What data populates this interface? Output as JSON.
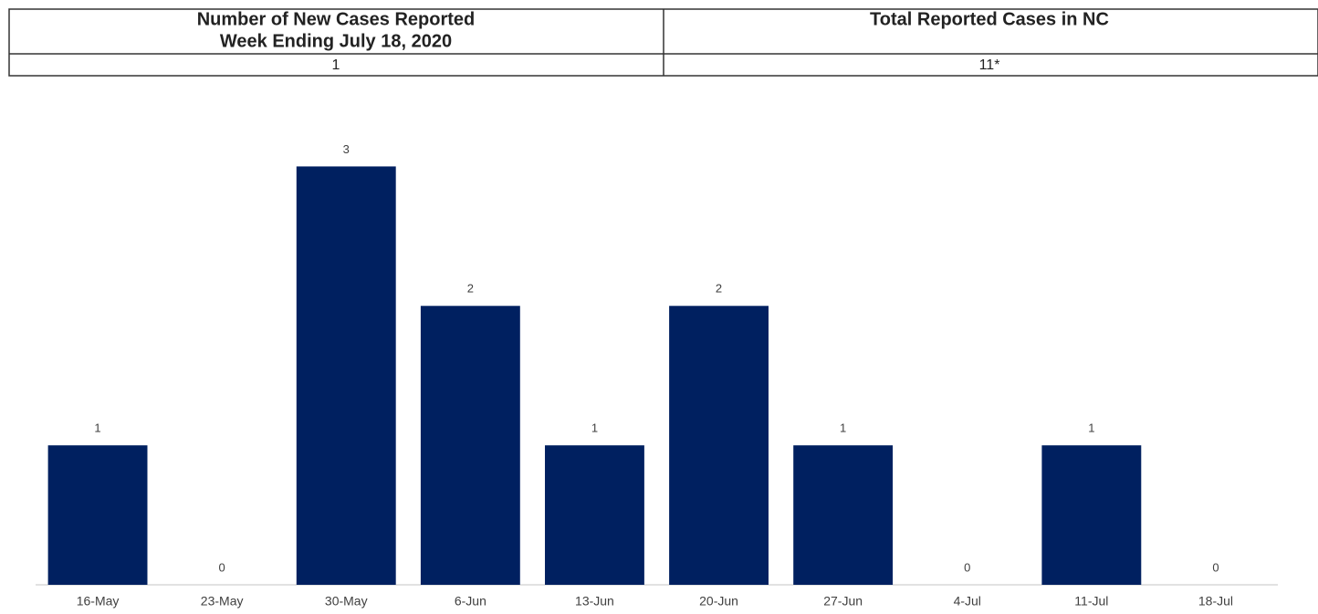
{
  "table": {
    "headers": [
      [
        "Number of New Cases Reported",
        "Week Ending July 18, 2020"
      ],
      [
        "Total Reported Cases in NC"
      ]
    ],
    "values": [
      "1",
      "11*"
    ]
  },
  "chart_data": {
    "type": "bar",
    "categories": [
      "16-May",
      "23-May",
      "30-May",
      "6-Jun",
      "13-Jun",
      "20-Jun",
      "27-Jun",
      "4-Jul",
      "11-Jul",
      "18-Jul"
    ],
    "values": [
      1,
      0,
      3,
      2,
      1,
      2,
      1,
      0,
      1,
      0
    ],
    "color": "#002060",
    "ylim": [
      0,
      3.5
    ]
  }
}
